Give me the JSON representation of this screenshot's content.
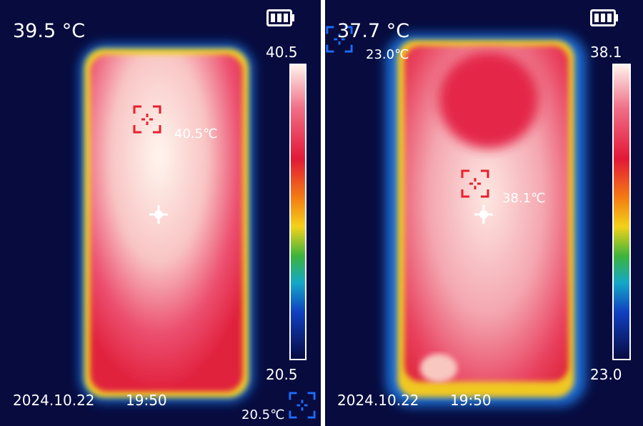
{
  "panels": [
    {
      "center_temp": "39.5 °C",
      "scale_max": "40.5",
      "scale_min": "20.5",
      "hot_spot_label": "40.5℃",
      "cold_spot_label": "20.5℃",
      "date": "2024.10.22",
      "time": "19:50"
    },
    {
      "center_temp": "37.7 °C",
      "scale_max": "38.1",
      "scale_min": "23.0",
      "hot_spot_label": "38.1℃",
      "cold_spot_label": "23.0℃",
      "date": "2024.10.22",
      "time": "19:50"
    }
  ]
}
